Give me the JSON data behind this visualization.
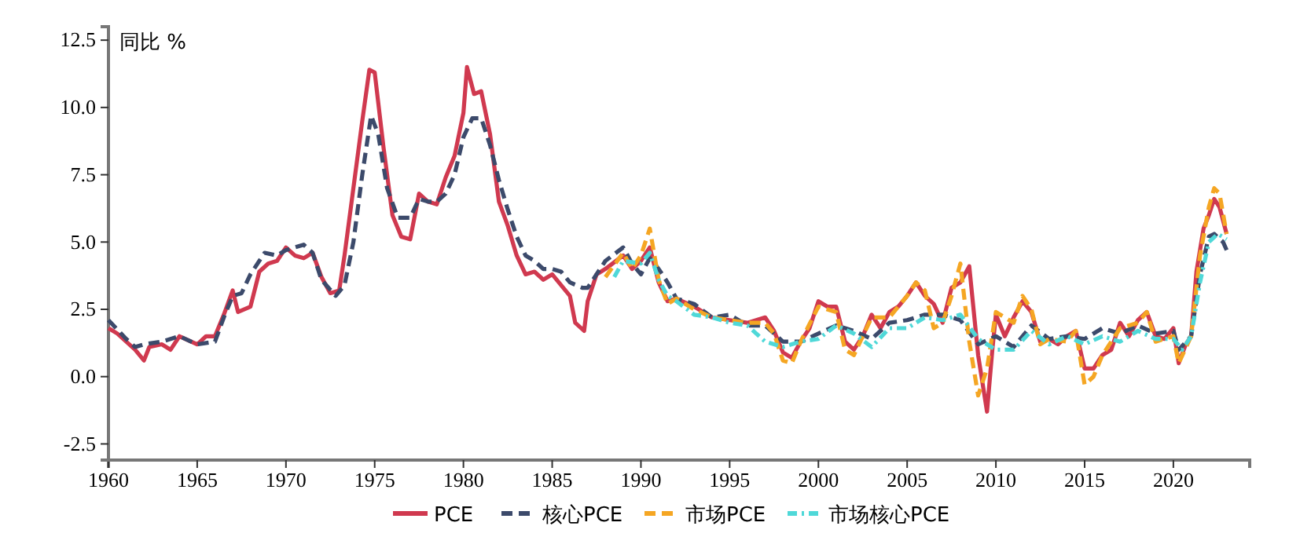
{
  "chart_data": {
    "type": "line",
    "ylabel": "同比 %",
    "xlim": [
      1960,
      2024.3
    ],
    "ylim": [
      -3.1,
      13
    ],
    "xticks": [
      1960,
      1965,
      1970,
      1975,
      1980,
      1985,
      1990,
      1995,
      2000,
      2005,
      2010,
      2015,
      2020
    ],
    "yticks": [
      {
        "value": -2.5,
        "label": "-2.5"
      },
      {
        "value": 0,
        "label": "0.0"
      },
      {
        "value": 2.5,
        "label": "2.5"
      },
      {
        "value": 5,
        "label": "5.0"
      },
      {
        "value": 7.5,
        "label": "7.5"
      },
      {
        "value": 10,
        "label": "10.0"
      },
      {
        "value": 12.5,
        "label": "12.5"
      }
    ],
    "grid": false,
    "legend": "bottom",
    "marker": "none",
    "series": [
      {
        "name": "PCE",
        "color": "#d0394f",
        "line_style": "solid",
        "x": [
          1960,
          1960.5,
          1961,
          1961.5,
          1962,
          1962.3,
          1963,
          1963.5,
          1964,
          1965,
          1965.5,
          1966,
          1966.5,
          1967,
          1967.3,
          1968,
          1968.5,
          1969,
          1969.5,
          1970,
          1970.5,
          1971,
          1971.5,
          1972,
          1972.5,
          1973,
          1973.3,
          1973.8,
          1974.3,
          1974.7,
          1975,
          1975.5,
          1976,
          1976.5,
          1977,
          1977.5,
          1978,
          1978.5,
          1979,
          1979.5,
          1980,
          1980.2,
          1980.6,
          1981,
          1981.5,
          1982,
          1982.5,
          1983,
          1983.5,
          1984,
          1984.5,
          1985,
          1985.5,
          1986,
          1986.3,
          1986.8,
          1987,
          1987.5,
          1988,
          1989,
          1989.5,
          1990,
          1990.5,
          1991,
          1991.5,
          1992,
          1993,
          1994,
          1995,
          1996,
          1997,
          1997.5,
          1998,
          1998.5,
          1999,
          1999.5,
          2000,
          2000.5,
          2001,
          2001.5,
          2002,
          2002.5,
          2003,
          2003.5,
          2004,
          2004.5,
          2005,
          2005.5,
          2006,
          2006.5,
          2007,
          2007.5,
          2008,
          2008.5,
          2009,
          2009.5,
          2009.8,
          2010,
          2010.5,
          2011,
          2011.5,
          2012,
          2012.5,
          2013,
          2013.5,
          2014,
          2014.5,
          2015,
          2015.5,
          2016,
          2016.5,
          2017,
          2017.5,
          2018,
          2018.5,
          2019,
          2019.5,
          2020,
          2020.3,
          2020.7,
          2021,
          2021.3,
          2021.7,
          2022,
          2022.3,
          2022.6,
          2023
        ],
        "values": [
          1.8,
          1.6,
          1.3,
          1.0,
          0.6,
          1.1,
          1.2,
          1.0,
          1.5,
          1.2,
          1.5,
          1.5,
          2.3,
          3.2,
          2.4,
          2.6,
          3.9,
          4.2,
          4.3,
          4.8,
          4.5,
          4.4,
          4.6,
          3.7,
          3.1,
          3.2,
          4.5,
          7.0,
          9.5,
          11.4,
          11.3,
          8.5,
          6.0,
          5.2,
          5.1,
          6.8,
          6.5,
          6.4,
          7.4,
          8.2,
          9.8,
          11.5,
          10.5,
          10.6,
          9.0,
          6.5,
          5.6,
          4.5,
          3.8,
          3.9,
          3.6,
          3.8,
          3.4,
          3.0,
          2.0,
          1.7,
          2.8,
          3.8,
          4.0,
          4.5,
          4.0,
          4.3,
          4.8,
          3.5,
          2.8,
          2.9,
          2.6,
          2.2,
          2.1,
          2.0,
          2.2,
          1.7,
          0.9,
          0.7,
          1.3,
          1.8,
          2.8,
          2.6,
          2.6,
          1.3,
          1.0,
          1.5,
          2.3,
          1.8,
          2.4,
          2.6,
          3.0,
          3.5,
          3.0,
          2.7,
          2.0,
          3.3,
          3.5,
          4.1,
          0.8,
          -1.3,
          1.0,
          2.3,
          1.5,
          2.2,
          2.8,
          2.4,
          1.3,
          1.4,
          1.2,
          1.5,
          1.7,
          0.3,
          0.3,
          0.8,
          1.0,
          2.0,
          1.5,
          2.1,
          2.4,
          1.5,
          1.4,
          1.8,
          0.5,
          1.2,
          1.5,
          3.9,
          5.5,
          6.0,
          6.6,
          6.3,
          5.3
        ]
      },
      {
        "name": "核心PCE",
        "color": "#3c4a6b",
        "line_style": "dashed",
        "x": [
          1960,
          1961,
          1961.5,
          1962,
          1963,
          1964,
          1965,
          1966,
          1966.5,
          1967,
          1967.5,
          1968,
          1968.8,
          1969.5,
          1970,
          1971,
          1971.5,
          1972,
          1972.8,
          1973.3,
          1973.8,
          1974.3,
          1974.8,
          1975.2,
          1975.7,
          1976.3,
          1977,
          1977.5,
          1978,
          1978.5,
          1979,
          1979.5,
          1980,
          1980.5,
          1981,
          1981.5,
          1982,
          1982.5,
          1983,
          1983.5,
          1984,
          1984.5,
          1985,
          1985.5,
          1986,
          1986.7,
          1987,
          1987.5,
          1988,
          1989,
          1989.5,
          1990,
          1990.5,
          1991,
          1991.5,
          1992,
          1993,
          1994,
          1995,
          1996,
          1997,
          1998,
          1999,
          2000,
          2001,
          2002,
          2003,
          2004,
          2005,
          2006,
          2007,
          2008,
          2009,
          2010,
          2011,
          2012,
          2013,
          2014,
          2015,
          2016,
          2017,
          2018,
          2019,
          2020,
          2020.3,
          2021,
          2021.5,
          2022,
          2022.3,
          2022.8,
          2023
        ],
        "values": [
          2.1,
          1.4,
          1.1,
          1.2,
          1.3,
          1.5,
          1.2,
          1.3,
          2.2,
          3.0,
          3.1,
          3.8,
          4.6,
          4.5,
          4.7,
          4.9,
          4.6,
          3.6,
          3.0,
          3.4,
          5.0,
          7.5,
          9.7,
          9.0,
          7.0,
          5.9,
          5.9,
          6.6,
          6.5,
          6.5,
          6.8,
          7.5,
          8.9,
          9.6,
          9.6,
          8.6,
          7.3,
          6.2,
          5.2,
          4.5,
          4.3,
          4.0,
          4.0,
          3.9,
          3.5,
          3.3,
          3.3,
          3.8,
          4.3,
          4.8,
          4.2,
          3.8,
          4.4,
          4.0,
          3.5,
          2.9,
          2.7,
          2.2,
          2.3,
          1.9,
          1.9,
          1.3,
          1.3,
          1.6,
          1.9,
          1.7,
          1.4,
          2.0,
          2.1,
          2.3,
          2.3,
          2.1,
          1.2,
          1.5,
          1.1,
          1.9,
          1.4,
          1.5,
          1.4,
          1.8,
          1.6,
          1.9,
          1.6,
          1.7,
          1.0,
          1.5,
          3.8,
          5.2,
          5.3,
          5.0,
          4.7
        ]
      },
      {
        "name": "市场PCE",
        "color": "#f5a623",
        "line_style": "dashed",
        "x": [
          1988,
          1989,
          1989.5,
          1990,
          1990.5,
          1991,
          1991.5,
          1992,
          1993,
          1994,
          1995,
          1996,
          1997,
          1997.5,
          1998,
          1998.5,
          1999,
          2000,
          2001,
          2001.5,
          2002,
          2003,
          2004,
          2005,
          2005.5,
          2006,
          2006.5,
          2007,
          2007.5,
          2008,
          2008.5,
          2009,
          2009.5,
          2010,
          2011,
          2011.5,
          2012,
          2012.5,
          2013,
          2014,
          2014.5,
          2015,
          2015.5,
          2016,
          2017,
          2018,
          2018.5,
          2019,
          2020,
          2020.3,
          2021,
          2021.5,
          2022,
          2022.3,
          2022.6,
          2023
        ],
        "values": [
          3.7,
          4.6,
          4.0,
          4.5,
          5.5,
          3.6,
          2.7,
          2.9,
          2.5,
          2.2,
          2.1,
          2.0,
          2.0,
          1.6,
          0.6,
          0.5,
          1.3,
          2.6,
          2.4,
          1.0,
          0.8,
          2.2,
          2.2,
          3.0,
          3.5,
          3.2,
          1.8,
          2.0,
          3.0,
          4.2,
          1.3,
          -0.7,
          0.3,
          2.4,
          2.0,
          3.0,
          2.5,
          1.2,
          1.4,
          1.3,
          1.7,
          -0.3,
          0.0,
          0.8,
          1.8,
          2.0,
          2.4,
          1.3,
          1.5,
          0.5,
          1.5,
          4.5,
          6.3,
          7.0,
          6.8,
          5.3
        ]
      },
      {
        "name": "市场核心PCE",
        "color": "#4fd8d8",
        "line_style": "dotted",
        "x": [
          1988.5,
          1989,
          1990,
          1990.5,
          1991,
          1991.5,
          1992,
          1993,
          1994,
          1995,
          1996,
          1997,
          1998,
          1999,
          2000,
          2001,
          2002,
          2003,
          2004,
          2005,
          2006,
          2007,
          2008,
          2009,
          2010,
          2011,
          2012,
          2013,
          2014,
          2015,
          2016,
          2017,
          2018,
          2019,
          2020,
          2020.5,
          2021,
          2021.5,
          2022,
          2022.5,
          2023
        ],
        "values": [
          3.7,
          4.3,
          4.2,
          4.6,
          3.6,
          3.0,
          2.8,
          2.3,
          2.2,
          2.0,
          1.9,
          1.3,
          1.1,
          1.3,
          1.4,
          1.9,
          1.6,
          1.1,
          1.8,
          1.8,
          2.2,
          2.1,
          2.3,
          1.4,
          1.0,
          1.0,
          1.7,
          1.2,
          1.5,
          1.2,
          1.5,
          1.3,
          1.7,
          1.4,
          1.4,
          1.0,
          1.5,
          3.5,
          5.0,
          5.3,
          5.1
        ]
      }
    ]
  }
}
